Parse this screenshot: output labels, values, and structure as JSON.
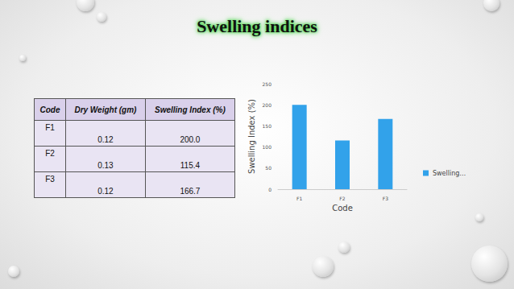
{
  "header": {
    "title": "Swelling indices"
  },
  "table": {
    "columns": [
      "Code",
      "Dry Weight (gm)",
      "Swelling Index (%)"
    ],
    "rows": [
      [
        "F1",
        "0.12",
        "200.0"
      ],
      [
        "F2",
        "0.13",
        "115.4"
      ],
      [
        "F3",
        "0.12",
        "166.7"
      ]
    ]
  },
  "chart_data": {
    "type": "bar",
    "x_label": "Code",
    "y_label": "Swelling Index (%)",
    "categories": [
      "F1",
      "F2",
      "F3"
    ],
    "series": [
      {
        "name": "Swelling…",
        "color": "#32a2ea",
        "values": [
          200.0,
          115.4,
          166.7
        ]
      }
    ],
    "ylim": [
      0,
      250
    ],
    "yticks": [
      0,
      50,
      100,
      150,
      200,
      250
    ],
    "grid": false,
    "legend": "right"
  }
}
